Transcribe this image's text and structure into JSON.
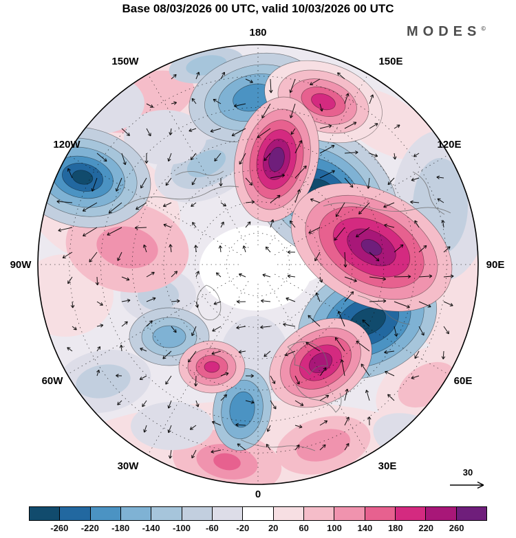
{
  "header": {
    "title": "Base 08/03/2026 00 UTC, valid 10/03/2026 00 UTC",
    "brand": "MODES",
    "brand_symbol": "©"
  },
  "map": {
    "longitude_labels": [
      "180",
      "150W",
      "150E",
      "120W",
      "120E",
      "90W",
      "90E",
      "60W",
      "60E",
      "30W",
      "30E",
      "0"
    ],
    "reference_arrow_label": "30"
  },
  "colorbar": {
    "tick_labels": [
      "-260",
      "-220",
      "-180",
      "-140",
      "-100",
      "-60",
      "-20",
      "20",
      "60",
      "100",
      "140",
      "180",
      "220",
      "260"
    ],
    "colors": [
      "#114b6d",
      "#2268a0",
      "#4b93c3",
      "#7fb2d4",
      "#a6c5db",
      "#c2cfdf",
      "#dddde8",
      "#ffffff",
      "#f7dfe3",
      "#f5bdc9",
      "#f093ae",
      "#e7618f",
      "#d42a80",
      "#a81778",
      "#6f1e7b"
    ]
  },
  "chart_data": {
    "type": "heatmap",
    "subtype": "filled-contour-anomaly-map-with-wind-vectors",
    "projection": "north-polar-stereographic",
    "title": "Base 08/03/2026 00 UTC, valid 10/03/2026 00 UTC",
    "base_time": "08/03/2026 00 UTC",
    "valid_time": "10/03/2026 00 UTC",
    "source_brand": "MODES",
    "colorbar_levels": [
      -260,
      -220,
      -180,
      -140,
      -100,
      -60,
      -20,
      20,
      60,
      100,
      140,
      180,
      220,
      260
    ],
    "colorbar_colors": [
      "#114b6d",
      "#2268a0",
      "#4b93c3",
      "#7fb2d4",
      "#a6c5db",
      "#c2cfdf",
      "#dddde8",
      "#ffffff",
      "#f7dfe3",
      "#f5bdc9",
      "#f093ae",
      "#e7618f",
      "#d42a80",
      "#a81778",
      "#6f1e7b"
    ],
    "colorbar_open_ended": true,
    "longitude_ticks": [
      "180",
      "150W",
      "150E",
      "120W",
      "120E",
      "90W",
      "90E",
      "60W",
      "60E",
      "30W",
      "30E",
      "0"
    ],
    "vector_reference_value": 30,
    "graticule": {
      "meridian_step_deg": 30,
      "dashed": true
    },
    "anomaly_centers": [
      {
        "sign": "positive",
        "value_band": "> 260",
        "approx_location": "high latitude between 180 and 150E"
      },
      {
        "sign": "negative",
        "value_band": "< -260",
        "approx_location": "mid-high latitude near 60E-75E"
      },
      {
        "sign": "negative",
        "value_band": "-260 to -220",
        "approx_location": "high latitude near 110E-130E"
      },
      {
        "sign": "positive",
        "value_band": "> 260",
        "approx_location": "mid latitude near 90E-100E"
      },
      {
        "sign": "negative",
        "value_band": "-260 to -220",
        "approx_location": "mid latitude near 125W"
      },
      {
        "sign": "positive",
        "value_band": "200 to 240",
        "approx_location": "subpolar near 40E-50E"
      },
      {
        "sign": "positive",
        "value_band": "160 to 200",
        "approx_location": "mid latitude near 150E-160E"
      },
      {
        "sign": "negative",
        "value_band": "-180 to -140",
        "approx_location": "high latitude near 180"
      },
      {
        "sign": "positive",
        "value_band": "100 to 140",
        "approx_location": "subpolar near 15W"
      },
      {
        "sign": "negative",
        "value_band": "-140 to -100",
        "approx_location": "low-mid latitude near 0-10E"
      },
      {
        "sign": "negative",
        "value_band": "-100 to -60",
        "approx_location": "mid latitude near 40W"
      },
      {
        "sign": "positive",
        "value_band": "60 to 140",
        "approx_location": "broad low-latitude band near 30W-30E"
      }
    ]
  }
}
